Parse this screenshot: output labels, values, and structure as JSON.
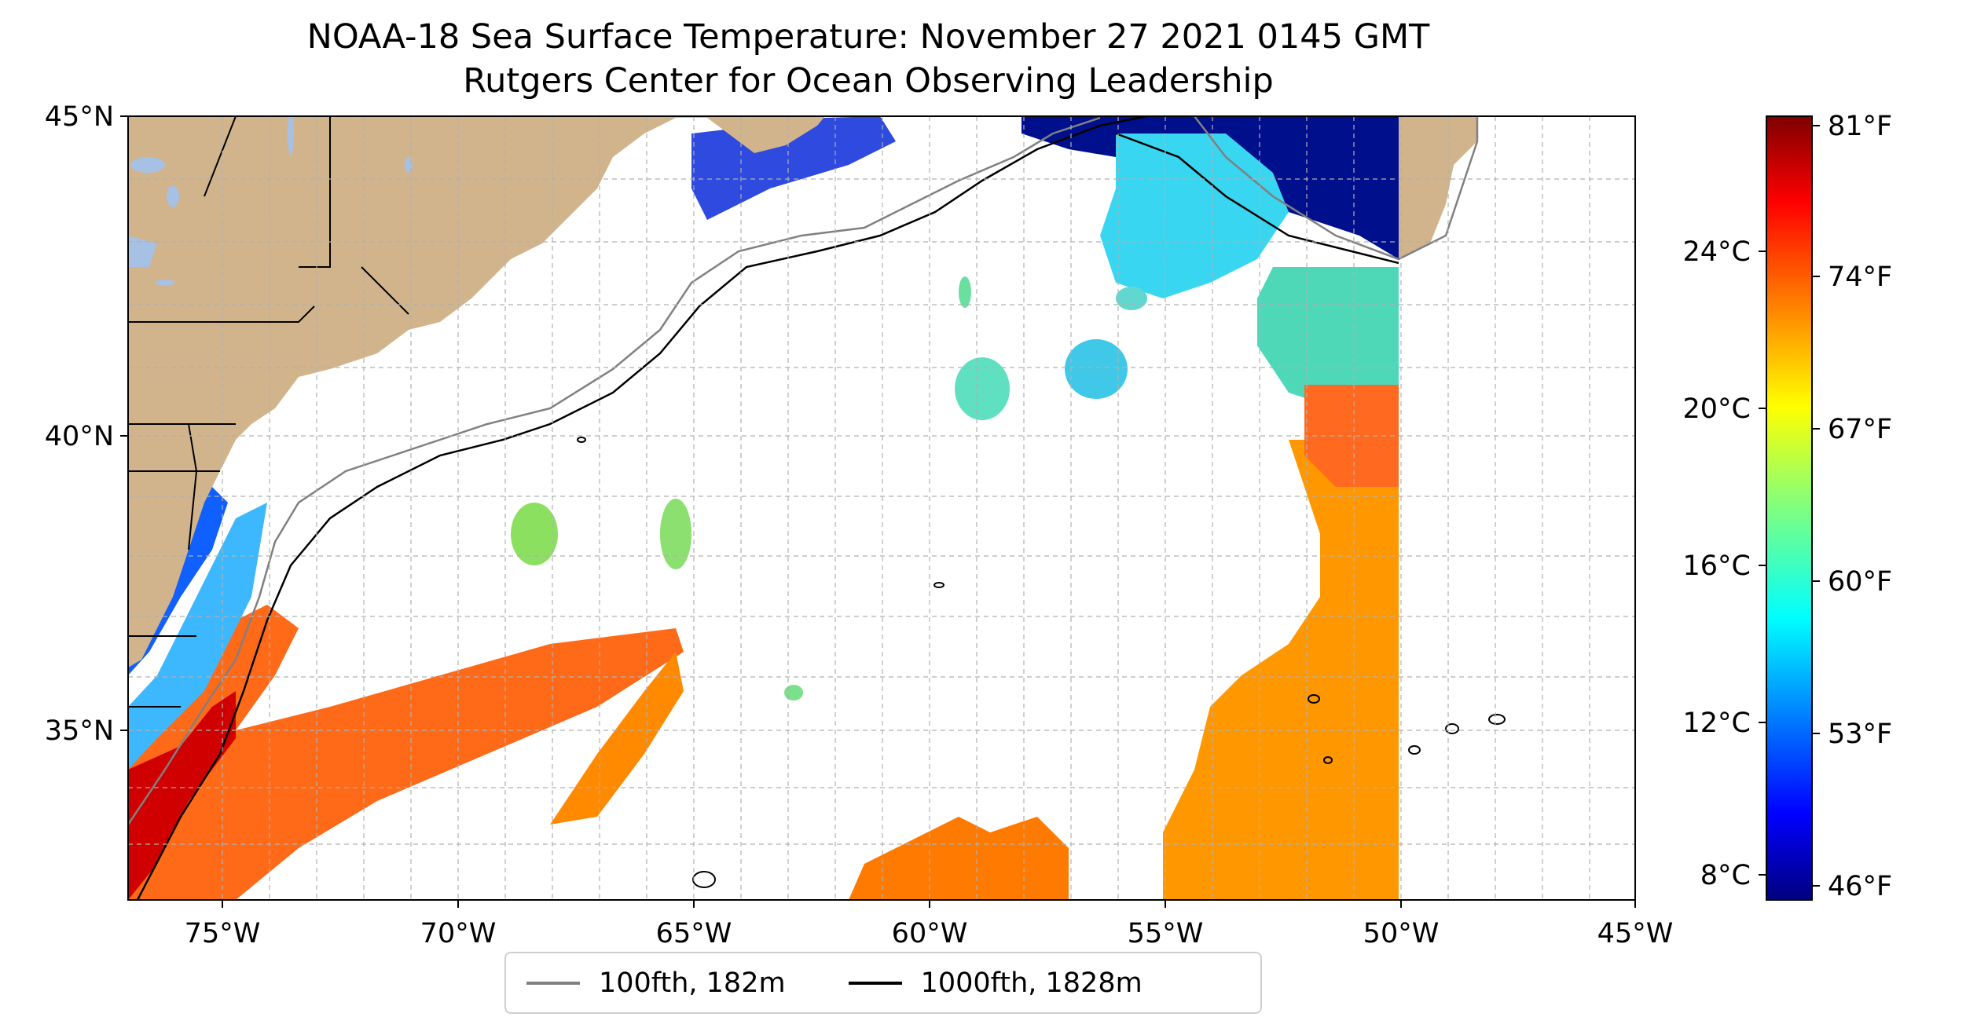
{
  "title": "NOAA-18 Sea Surface Temperature: November 27 2021 0145 GMT",
  "subtitle": "Rutgers Center for Ocean Observing Leadership",
  "colors": {
    "land": "#d2b48c",
    "lakes": "#a6c1e3",
    "isobath_100fth": "#808080",
    "isobath_1000fth": "#000000",
    "grid": "#b0b0b0"
  },
  "map": {
    "lon_range": [
      -77,
      -45
    ],
    "lat_range": [
      32.5,
      45
    ],
    "lon_ticks": [
      "75°W",
      "70°W",
      "65°W",
      "60°W",
      "55°W",
      "50°W",
      "45°W"
    ],
    "lat_ticks": [
      "45°N",
      "40°N",
      "35°N"
    ],
    "grid": true
  },
  "legend": {
    "position": "bottom-center",
    "items": [
      {
        "label": "100fth, 182m",
        "color": "#808080"
      },
      {
        "label": "1000fth, 1828m",
        "color": "#000000"
      }
    ]
  },
  "colorbar": {
    "colormap": "jet",
    "celsius_ticks": [
      "24°C",
      "20°C",
      "16°C",
      "12°C",
      "8°C"
    ],
    "fahrenheit_ticks": [
      "81°F",
      "74°F",
      "67°F",
      "60°F",
      "53°F",
      "46°F"
    ]
  }
}
